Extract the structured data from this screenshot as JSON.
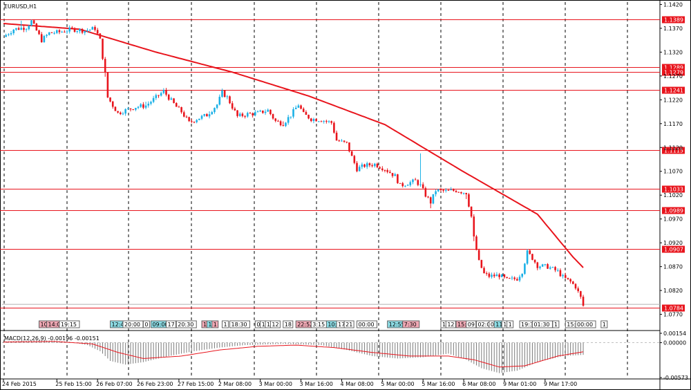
{
  "title": "EURUSD,H1",
  "colors": {
    "up": "#1ab0e6",
    "down": "#e8141c",
    "ma": "#e8141c",
    "level": "#e8141c",
    "macd_hist": "#7a7a7a",
    "macd_signal": "#e8141c",
    "grid": "#000000",
    "event_up": "#8ddde6",
    "event_down": "#f0a8b4",
    "event_neutral": "#ffffff"
  },
  "chart_data": {
    "type": "candlestick",
    "title": "EURUSD,H1",
    "ylim": [
      1.0765,
      1.1425
    ],
    "y_ticks": [
      "1.1420",
      "1.1370",
      "1.1320",
      "1.1270",
      "1.1220",
      "1.1170",
      "1.1120",
      "1.1070",
      "1.1020",
      "1.0970",
      "1.0920",
      "1.0870",
      "1.0820",
      "1.0770"
    ],
    "x_ticks": [
      {
        "label": "24 Feb 2015",
        "index": 0
      },
      {
        "label": "25 Feb 15:00",
        "index": 21
      },
      {
        "label": "26 Feb 07:00",
        "index": 37
      },
      {
        "label": "26 Feb 23:00",
        "index": 53
      },
      {
        "label": "27 Feb 15:00",
        "index": 69
      },
      {
        "label": "2 Mar 08:00",
        "index": 85
      },
      {
        "label": "3 Mar 00:00",
        "index": 101
      },
      {
        "label": "3 Mar 16:00",
        "index": 117
      },
      {
        "label": "4 Mar 08:00",
        "index": 133
      },
      {
        "label": "5 Mar 00:00",
        "index": 149
      },
      {
        "label": "5 Mar 16:00",
        "index": 165
      },
      {
        "label": "6 Mar 08:00",
        "index": 181
      },
      {
        "label": "9 Mar 01:00",
        "index": 197
      },
      {
        "label": "9 Mar 17:00",
        "index": 213
      }
    ],
    "anchors": [
      [
        0,
        1.1352
      ],
      [
        4,
        1.1368
      ],
      [
        9,
        1.1372
      ],
      [
        11,
        1.1385
      ],
      [
        13,
        1.1365
      ],
      [
        15,
        1.1345
      ],
      [
        18,
        1.136
      ],
      [
        22,
        1.1362
      ],
      [
        27,
        1.1368
      ],
      [
        32,
        1.1365
      ],
      [
        36,
        1.137
      ],
      [
        38,
        1.1345
      ],
      [
        40,
        1.1275
      ],
      [
        41,
        1.1225
      ],
      [
        43,
        1.1208
      ],
      [
        45,
        1.1192
      ],
      [
        48,
        1.1198
      ],
      [
        52,
        1.1205
      ],
      [
        56,
        1.1208
      ],
      [
        60,
        1.1225
      ],
      [
        63,
        1.1238
      ],
      [
        66,
        1.1218
      ],
      [
        68,
        1.1205
      ],
      [
        70,
        1.1195
      ],
      [
        73,
        1.1172
      ],
      [
        76,
        1.118
      ],
      [
        80,
        1.1188
      ],
      [
        84,
        1.121
      ],
      [
        86,
        1.1235
      ],
      [
        88,
        1.1225
      ],
      [
        90,
        1.1205
      ],
      [
        92,
        1.1185
      ],
      [
        96,
        1.119
      ],
      [
        100,
        1.1192
      ],
      [
        104,
        1.1198
      ],
      [
        107,
        1.1175
      ],
      [
        110,
        1.117
      ],
      [
        113,
        1.1188
      ],
      [
        116,
        1.121
      ],
      [
        118,
        1.119
      ],
      [
        121,
        1.118
      ],
      [
        125,
        1.1178
      ],
      [
        129,
        1.1172
      ],
      [
        131,
        1.1135
      ],
      [
        135,
        1.1128
      ],
      [
        137,
        1.11
      ],
      [
        139,
        1.1075
      ],
      [
        142,
        1.1082
      ],
      [
        146,
        1.1085
      ],
      [
        150,
        1.1075
      ],
      [
        154,
        1.106
      ],
      [
        156,
        1.104
      ],
      [
        159,
        1.1045
      ],
      [
        162,
        1.105
      ],
      [
        164,
        1.104
      ],
      [
        166,
        1.102
      ],
      [
        168,
        1.1005
      ],
      [
        170,
        1.103
      ],
      [
        174,
        1.1028
      ],
      [
        178,
        1.103
      ],
      [
        182,
        1.1025
      ],
      [
        184,
        1.0975
      ],
      [
        185,
        1.093
      ],
      [
        187,
        1.088
      ],
      [
        189,
        1.0855
      ],
      [
        191,
        1.085
      ],
      [
        195,
        1.0852
      ],
      [
        198,
        1.0842
      ],
      [
        202,
        1.0845
      ],
      [
        204,
        1.086
      ],
      [
        206,
        1.09
      ],
      [
        208,
        1.0888
      ],
      [
        210,
        1.0872
      ],
      [
        214,
        1.087
      ],
      [
        218,
        1.086
      ],
      [
        220,
        1.0848
      ],
      [
        223,
        1.0838
      ],
      [
        225,
        1.0828
      ],
      [
        227,
        1.0805
      ],
      [
        228,
        1.0788
      ]
    ],
    "spikes": [
      [
        7,
        0.0015
      ],
      [
        40,
        -0.001
      ],
      [
        56,
        0.0008
      ],
      [
        81,
        0.0006
      ],
      [
        110,
        0.0008
      ],
      [
        164,
        0.0065
      ],
      [
        168,
        -0.001
      ],
      [
        182,
        -0.001
      ],
      [
        185,
        -0.001
      ]
    ],
    "moving_average": [
      [
        0,
        1.138
      ],
      [
        30,
        1.1368
      ],
      [
        60,
        1.132
      ],
      [
        90,
        1.1278
      ],
      [
        120,
        1.1228
      ],
      [
        150,
        1.1168
      ],
      [
        180,
        1.1072
      ],
      [
        210,
        1.098
      ],
      [
        224,
        1.089
      ],
      [
        228,
        1.0868
      ]
    ],
    "levels": [
      {
        "value": "1.1389",
        "price": 1.1389
      },
      {
        "value": "1.1289",
        "price": 1.1289
      },
      {
        "value": "1.1279",
        "price": 1.1279
      },
      {
        "value": "1.1241",
        "price": 1.1241
      },
      {
        "value": "1.1115",
        "price": 1.1115
      },
      {
        "value": "1.1033",
        "price": 1.1033
      },
      {
        "value": "1.0989",
        "price": 1.0989
      },
      {
        "value": "1.0907",
        "price": 1.0907
      },
      {
        "value": "1.0784",
        "price": 1.0784
      }
    ],
    "macd": {
      "label": "MACD(12,26,9) -0.00196 -0.00151",
      "ylim": [
        -0.00573,
        0.00154
      ],
      "y_ticks": [
        "0.00154",
        "0.00000",
        "-0.00573"
      ],
      "hist_anchors": [
        [
          0,
          0.0002
        ],
        [
          15,
          0.0004
        ],
        [
          25,
          0.0002
        ],
        [
          33,
          -0.0004
        ],
        [
          38,
          -0.0014
        ],
        [
          42,
          -0.003
        ],
        [
          48,
          -0.0036
        ],
        [
          55,
          -0.0032
        ],
        [
          65,
          -0.0022
        ],
        [
          75,
          -0.0014
        ],
        [
          85,
          -0.0008
        ],
        [
          95,
          -0.0004
        ],
        [
          110,
          -0.0002
        ],
        [
          125,
          -0.0004
        ],
        [
          135,
          -0.0012
        ],
        [
          145,
          -0.0022
        ],
        [
          155,
          -0.0026
        ],
        [
          165,
          -0.0024
        ],
        [
          175,
          -0.0018
        ],
        [
          182,
          -0.0028
        ],
        [
          188,
          -0.0042
        ],
        [
          195,
          -0.005
        ],
        [
          202,
          -0.0046
        ],
        [
          210,
          -0.0032
        ],
        [
          220,
          -0.0022
        ],
        [
          228,
          -0.002
        ]
      ],
      "signal_anchors": [
        [
          0,
          0.0001
        ],
        [
          20,
          0.0002
        ],
        [
          35,
          -0.0002
        ],
        [
          45,
          -0.0016
        ],
        [
          55,
          -0.0026
        ],
        [
          70,
          -0.0022
        ],
        [
          85,
          -0.0012
        ],
        [
          100,
          -0.0006
        ],
        [
          115,
          -0.0004
        ],
        [
          130,
          -0.0008
        ],
        [
          145,
          -0.0016
        ],
        [
          160,
          -0.0022
        ],
        [
          175,
          -0.0022
        ],
        [
          185,
          -0.0028
        ],
        [
          195,
          -0.004
        ],
        [
          205,
          -0.0038
        ],
        [
          218,
          -0.0022
        ],
        [
          228,
          -0.0015
        ]
      ]
    }
  },
  "events": [
    {
      "label": "10:",
      "index": 14,
      "kind": "down"
    },
    {
      "label": "14:0",
      "index": 17,
      "kind": "down"
    },
    {
      "label": "19:15",
      "index": 22,
      "kind": "neutral"
    },
    {
      "label": "12:43",
      "index": 42,
      "kind": "up"
    },
    {
      "label": "20:00",
      "index": 47,
      "kind": "neutral"
    },
    {
      "label": "0",
      "index": 55,
      "kind": "neutral"
    },
    {
      "label": "09:00",
      "index": 58,
      "kind": "up"
    },
    {
      "label": "17",
      "index": 64,
      "kind": "neutral"
    },
    {
      "label": "20:30",
      "index": 68,
      "kind": "neutral"
    },
    {
      "label": "1",
      "index": 78,
      "kind": "down"
    },
    {
      "label": "1",
      "index": 80,
      "kind": "up"
    },
    {
      "label": "1",
      "index": 82,
      "kind": "down"
    },
    {
      "label": "1",
      "index": 86,
      "kind": "neutral"
    },
    {
      "label": "18:30",
      "index": 89,
      "kind": "neutral"
    },
    {
      "label": "0",
      "index": 99,
      "kind": "neutral"
    },
    {
      "label": "1",
      "index": 101,
      "kind": "neutral"
    },
    {
      "label": "1",
      "index": 103,
      "kind": "neutral"
    },
    {
      "label": "12",
      "index": 105,
      "kind": "neutral"
    },
    {
      "label": "18",
      "index": 110,
      "kind": "neutral"
    },
    {
      "label": "22:52",
      "index": 115,
      "kind": "down"
    },
    {
      "label": "3:15",
      "index": 121,
      "kind": "neutral"
    },
    {
      "label": "10:00",
      "index": 127,
      "kind": "up"
    },
    {
      "label": "17",
      "index": 131,
      "kind": "neutral"
    },
    {
      "label": "21",
      "index": 134,
      "kind": "neutral"
    },
    {
      "label": "00:00",
      "index": 139,
      "kind": "neutral"
    },
    {
      "label": "12:55",
      "index": 151,
      "kind": "up"
    },
    {
      "label": "7:30",
      "index": 157,
      "kind": "down"
    },
    {
      "label": "1",
      "index": 172,
      "kind": "neutral"
    },
    {
      "label": "12",
      "index": 174,
      "kind": "neutral"
    },
    {
      "label": "15:30",
      "index": 178,
      "kind": "down"
    },
    {
      "label": "09",
      "index": 182,
      "kind": "neutral"
    },
    {
      "label": "02:00",
      "index": 186,
      "kind": "neutral"
    },
    {
      "label": "0",
      "index": 191,
      "kind": "neutral"
    },
    {
      "label": "11",
      "index": 193,
      "kind": "up"
    },
    {
      "label": "1",
      "index": 196,
      "kind": "neutral"
    },
    {
      "label": "1",
      "index": 198,
      "kind": "neutral"
    },
    {
      "label": "19:30",
      "index": 203,
      "kind": "neutral"
    },
    {
      "label": "01:30",
      "index": 208,
      "kind": "neutral"
    },
    {
      "label": "1",
      "index": 216,
      "kind": "neutral"
    },
    {
      "label": "15:00",
      "index": 221,
      "kind": "neutral"
    },
    {
      "label": "00:00",
      "index": 225,
      "kind": "neutral"
    },
    {
      "label": "1",
      "index": 235,
      "kind": "neutral"
    }
  ]
}
